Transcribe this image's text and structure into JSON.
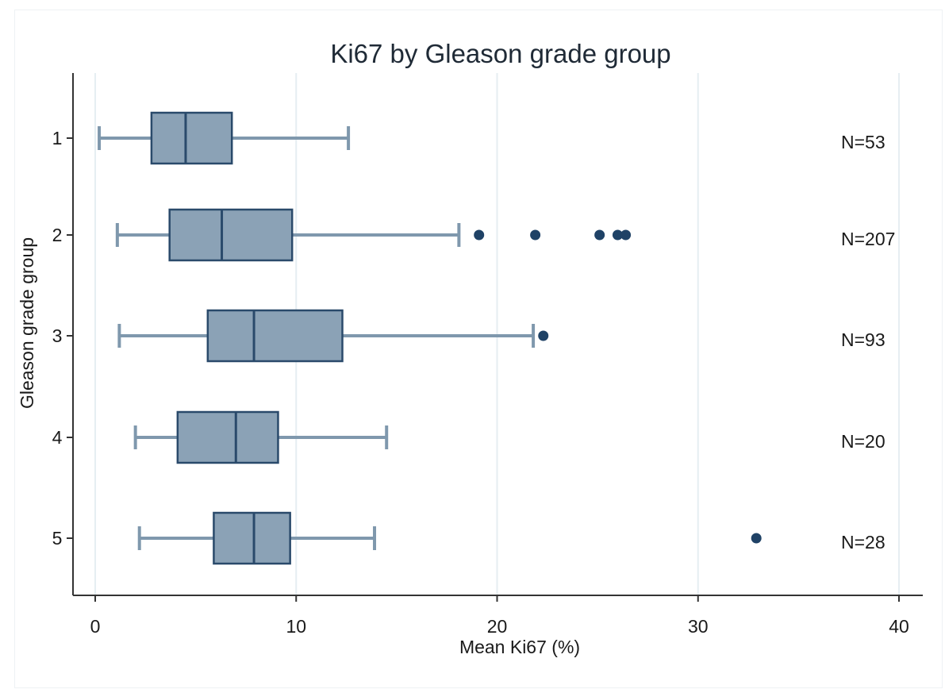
{
  "chart_data": {
    "type": "boxplot",
    "orientation": "horizontal",
    "title": "Ki67 by Gleason grade group",
    "xlabel": "Mean Ki67 (%)",
    "ylabel": "Gleason grade group",
    "xlim": [
      0,
      40
    ],
    "xticks": [
      "0",
      "10",
      "20",
      "30",
      "40"
    ],
    "grid": true,
    "groups": [
      {
        "label": "1",
        "n_label": "N=53",
        "whisker_low": 0.2,
        "q1": 2.8,
        "median": 4.5,
        "q3": 6.8,
        "whisker_high": 12.6,
        "outliers": []
      },
      {
        "label": "2",
        "n_label": "N=207",
        "whisker_low": 1.1,
        "q1": 3.7,
        "median": 6.3,
        "q3": 9.8,
        "whisker_high": 18.1,
        "outliers": [
          19.1,
          21.9,
          25.1,
          26.0,
          26.4
        ]
      },
      {
        "label": "3",
        "n_label": "N=93",
        "whisker_low": 1.2,
        "q1": 5.6,
        "median": 7.9,
        "q3": 12.3,
        "whisker_high": 21.8,
        "outliers": [
          22.3
        ]
      },
      {
        "label": "4",
        "n_label": "N=20",
        "whisker_low": 2.0,
        "q1": 4.1,
        "median": 7.0,
        "q3": 9.1,
        "whisker_high": 14.5,
        "outliers": []
      },
      {
        "label": "5",
        "n_label": "N=28",
        "whisker_low": 2.2,
        "q1": 5.9,
        "median": 7.9,
        "q3": 9.7,
        "whisker_high": 13.9,
        "outliers": [
          32.9
        ]
      }
    ],
    "colors": {
      "box_fill": "#8ba2b6",
      "box_stroke": "#2a4a6b",
      "whisker": "#7f98ad",
      "outlier": "#1f4266",
      "grid": "#e6eef2",
      "axis": "#333333"
    }
  }
}
